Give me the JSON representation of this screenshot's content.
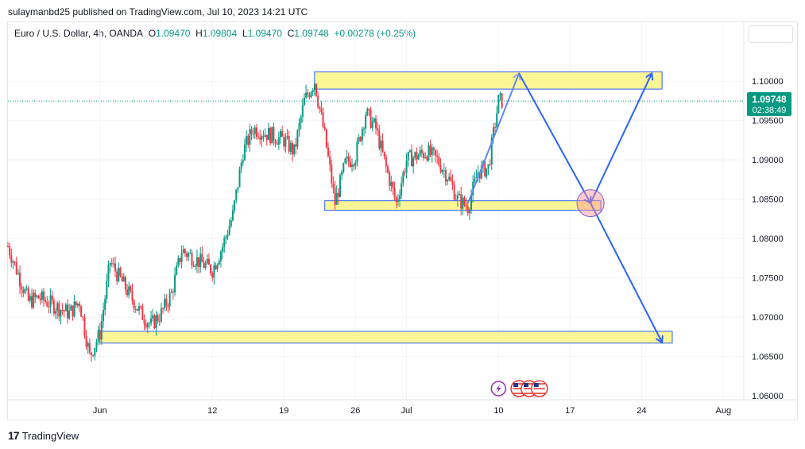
{
  "header": {
    "text": "sulaymanbd25 published on TradingView.com, Jul 10, 2023 14:21 UTC"
  },
  "legend": {
    "symbol": "Euro / U.S. Dollar, 4h, OANDA",
    "open_key": "O",
    "open": "1.09470",
    "high_key": "H",
    "high": "1.09804",
    "low_key": "L",
    "low": "1.09470",
    "close_key": "C",
    "close": "1.09748",
    "change": "+0.00278 (+0.25%)"
  },
  "price_label": {
    "price": "1.09748",
    "countdown": "02:38:49"
  },
  "footer": {
    "brand": "TradingView"
  },
  "colors": {
    "up": "#089981",
    "down": "#f23645",
    "zone_fill": "#fdf58c",
    "zone_stroke": "#2962ff",
    "arrow": "#2962ff",
    "target": "#ff8f8f"
  },
  "chart_data": {
    "type": "candlestick",
    "title": "Euro / U.S. Dollar, 4h, OANDA",
    "ylim": [
      1.0595,
      1.1075
    ],
    "y_ticks": [
      "1.10000",
      "1.09500",
      "1.09000",
      "1.08500",
      "1.08000",
      "1.07500",
      "1.07000",
      "1.06500",
      "1.06000"
    ],
    "y_tick_values": [
      1.1,
      1.095,
      1.09,
      1.085,
      1.08,
      1.075,
      1.07,
      1.065,
      1.06
    ],
    "x_range": [
      "2023-05-23",
      "2023-08-03"
    ],
    "x_ticks": [
      {
        "label": "Jun",
        "date": "2023-06-01"
      },
      {
        "label": "12",
        "date": "2023-06-12"
      },
      {
        "label": "19",
        "date": "2023-06-19"
      },
      {
        "label": "26",
        "date": "2023-06-26"
      },
      {
        "label": "Jul",
        "date": "2023-07-01"
      },
      {
        "label": "10",
        "date": "2023-07-10"
      },
      {
        "label": "17",
        "date": "2023-07-17"
      },
      {
        "label": "24",
        "date": "2023-07-24"
      },
      {
        "label": "Aug",
        "date": "2023-08-01"
      }
    ],
    "path_close": [
      [
        "2023-05-23",
        1.079
      ],
      [
        "2023-05-24",
        1.0755
      ],
      [
        "2023-05-25",
        1.072
      ],
      [
        "2023-05-26",
        1.0725
      ],
      [
        "2023-05-29",
        1.0705
      ],
      [
        "2023-05-30",
        1.072
      ],
      [
        "2023-05-31",
        1.065
      ],
      [
        "2023-06-01",
        1.068
      ],
      [
        "2023-06-02",
        1.077
      ],
      [
        "2023-06-05",
        1.0705
      ],
      [
        "2023-06-06",
        1.069
      ],
      [
        "2023-06-07",
        1.0705
      ],
      [
        "2023-06-08",
        1.073
      ],
      [
        "2023-06-09",
        1.0785
      ],
      [
        "2023-06-12",
        1.076
      ],
      [
        "2023-06-13",
        1.079
      ],
      [
        "2023-06-14",
        1.083
      ],
      [
        "2023-06-15",
        1.091
      ],
      [
        "2023-06-16",
        1.094
      ],
      [
        "2023-06-19",
        1.0925
      ],
      [
        "2023-06-20",
        1.091
      ],
      [
        "2023-06-21",
        1.0975
      ],
      [
        "2023-06-22",
        1.1
      ],
      [
        "2023-06-23",
        1.093
      ],
      [
        "2023-06-24",
        1.0845
      ],
      [
        "2023-06-25",
        1.0895
      ],
      [
        "2023-06-26",
        1.0905
      ],
      [
        "2023-06-27",
        1.096
      ],
      [
        "2023-06-28",
        1.094
      ],
      [
        "2023-06-29",
        1.089
      ],
      [
        "2023-06-30",
        1.0845
      ],
      [
        "2023-07-01",
        1.09
      ],
      [
        "2023-07-03",
        1.091
      ],
      [
        "2023-07-04",
        1.09
      ],
      [
        "2023-07-05",
        1.088
      ],
      [
        "2023-07-06",
        1.085
      ],
      [
        "2023-07-07",
        1.084
      ],
      [
        "2023-07-08",
        1.0885
      ],
      [
        "2023-07-09",
        1.089
      ],
      [
        "2023-07-10",
        1.0975
      ]
    ],
    "zones": [
      {
        "name": "resistance",
        "from": "2023-06-22",
        "to": "2023-07-26",
        "y_top": 1.1012,
        "y_bottom": 1.099
      },
      {
        "name": "support",
        "from": "2023-06-23",
        "to": "2023-07-20",
        "y_top": 1.0848,
        "y_bottom": 1.0836
      },
      {
        "name": "lower-target",
        "from": "2023-06-01",
        "to": "2023-07-27",
        "y_top": 1.0682,
        "y_bottom": 1.0667
      }
    ],
    "arrows": [
      {
        "name": "first-leg-up",
        "points": [
          [
            "2023-07-07",
            1.0845
          ],
          [
            "2023-07-12",
            1.101
          ]
        ],
        "color": "#5e86f5"
      },
      {
        "name": "drop-to-support",
        "points": [
          [
            "2023-07-12",
            1.101
          ],
          [
            "2023-07-19",
            1.0845
          ]
        ],
        "color": "#2962ff"
      },
      {
        "name": "bullish-scenario",
        "points": [
          [
            "2023-07-19",
            1.0845
          ],
          [
            "2023-07-25",
            1.101
          ]
        ],
        "color": "#2962ff"
      },
      {
        "name": "bearish-scenario",
        "points": [
          [
            "2023-07-19",
            1.0845
          ],
          [
            "2023-07-26",
            1.0668
          ]
        ],
        "color": "#2962ff"
      }
    ],
    "marker": {
      "name": "decision-circle",
      "date": "2023-07-19",
      "y": 1.0845
    },
    "events": [
      {
        "name": "event-lightning-icon",
        "date": "2023-07-10"
      },
      {
        "name": "us-flag-icon",
        "date": "2023-07-12"
      },
      {
        "name": "us-flag-icon",
        "date": "2023-07-13"
      },
      {
        "name": "us-flag-icon",
        "date": "2023-07-14"
      }
    ],
    "last_price": 1.09748
  }
}
